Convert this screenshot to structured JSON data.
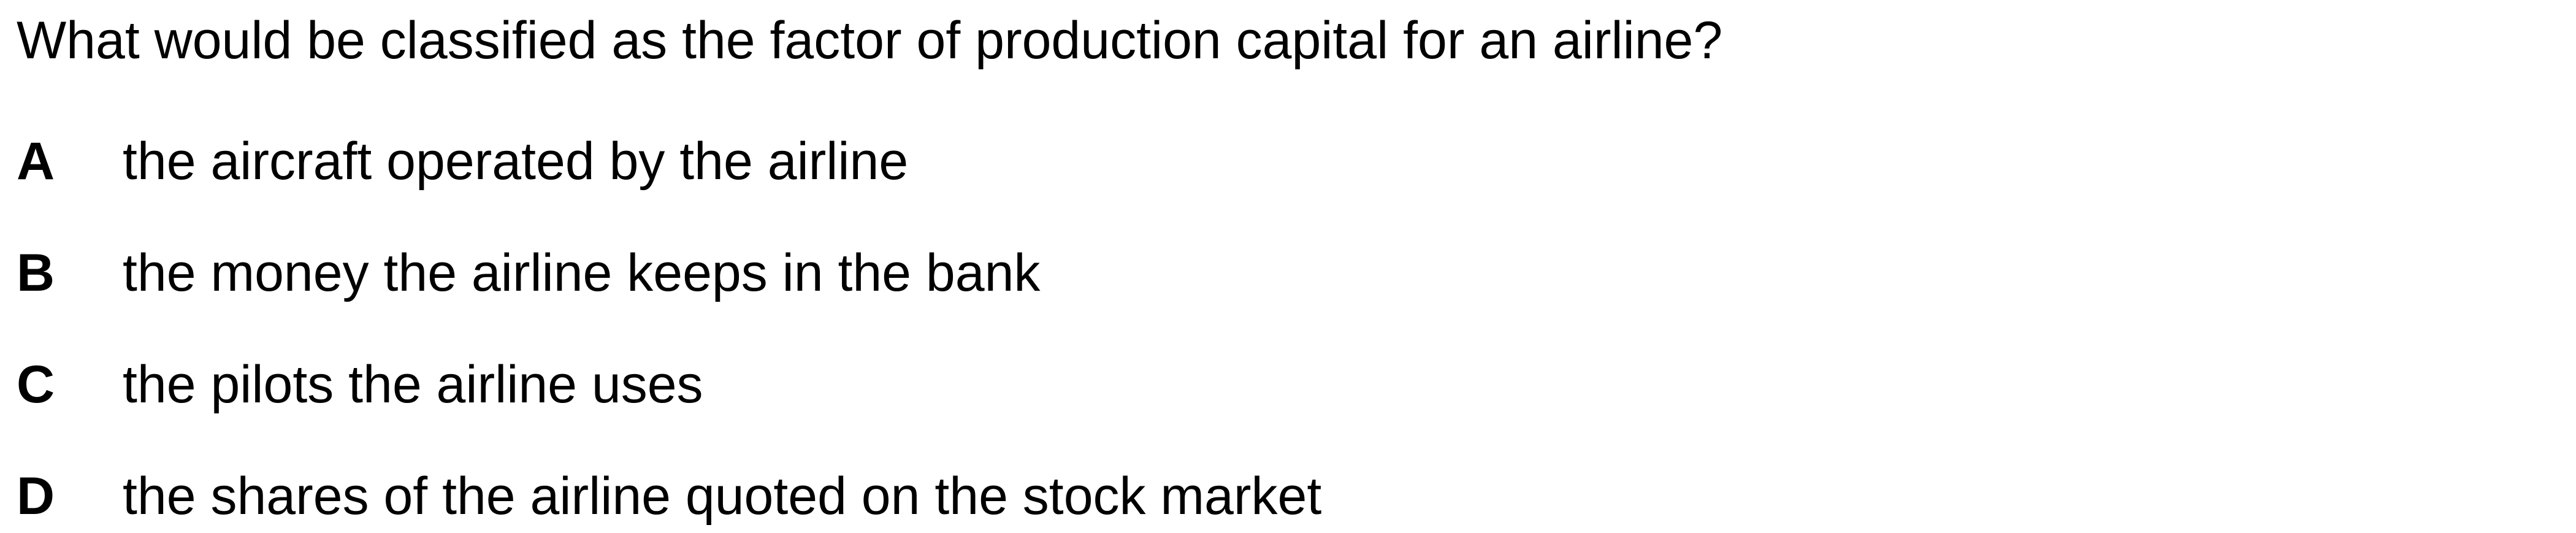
{
  "question": {
    "text": "What would be classified as the factor of production capital for an airline?"
  },
  "options": [
    {
      "letter": "A",
      "text": "the aircraft operated by the airline"
    },
    {
      "letter": "B",
      "text": "the money the airline keeps in the bank"
    },
    {
      "letter": "C",
      "text": "the pilots the airline uses"
    },
    {
      "letter": "D",
      "text": "the shares of the airline quoted on the stock market"
    }
  ]
}
